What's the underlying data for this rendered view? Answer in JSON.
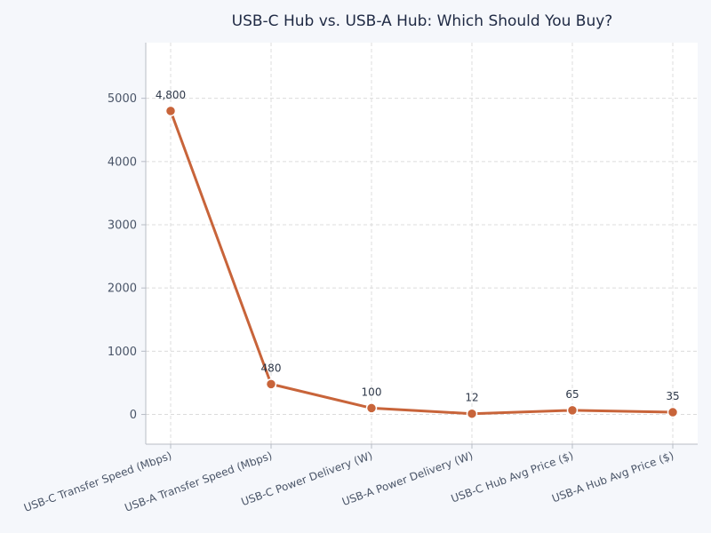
{
  "chart_data": {
    "type": "line",
    "title": "USB-C Hub vs. USB-A Hub: Which Should You Buy?",
    "xlabel": "",
    "ylabel": "",
    "categories": [
      "USB-C Transfer Speed (Mbps)",
      "USB-A Transfer Speed (Mbps)",
      "USB-C Power Delivery (W)",
      "USB-A Power Delivery (W)",
      "USB-C Hub Avg Price ($)",
      "USB-A Hub Avg Price ($)"
    ],
    "series": [
      {
        "values": [
          4800,
          480,
          100,
          12,
          65,
          35
        ],
        "data_labels": [
          "4,800",
          "480",
          "100",
          "12",
          "65",
          "35"
        ],
        "color": "#c8643a"
      }
    ],
    "yticks": [
      0,
      1000,
      2000,
      3000,
      4000,
      5000
    ],
    "ylim": [
      -470,
      5880
    ],
    "grid": true,
    "legend": "none",
    "colors": {
      "background": "#f5f7fb",
      "plot_background": "#ffffff",
      "line": "#c8643a",
      "marker_edge": "#ffffff"
    }
  }
}
